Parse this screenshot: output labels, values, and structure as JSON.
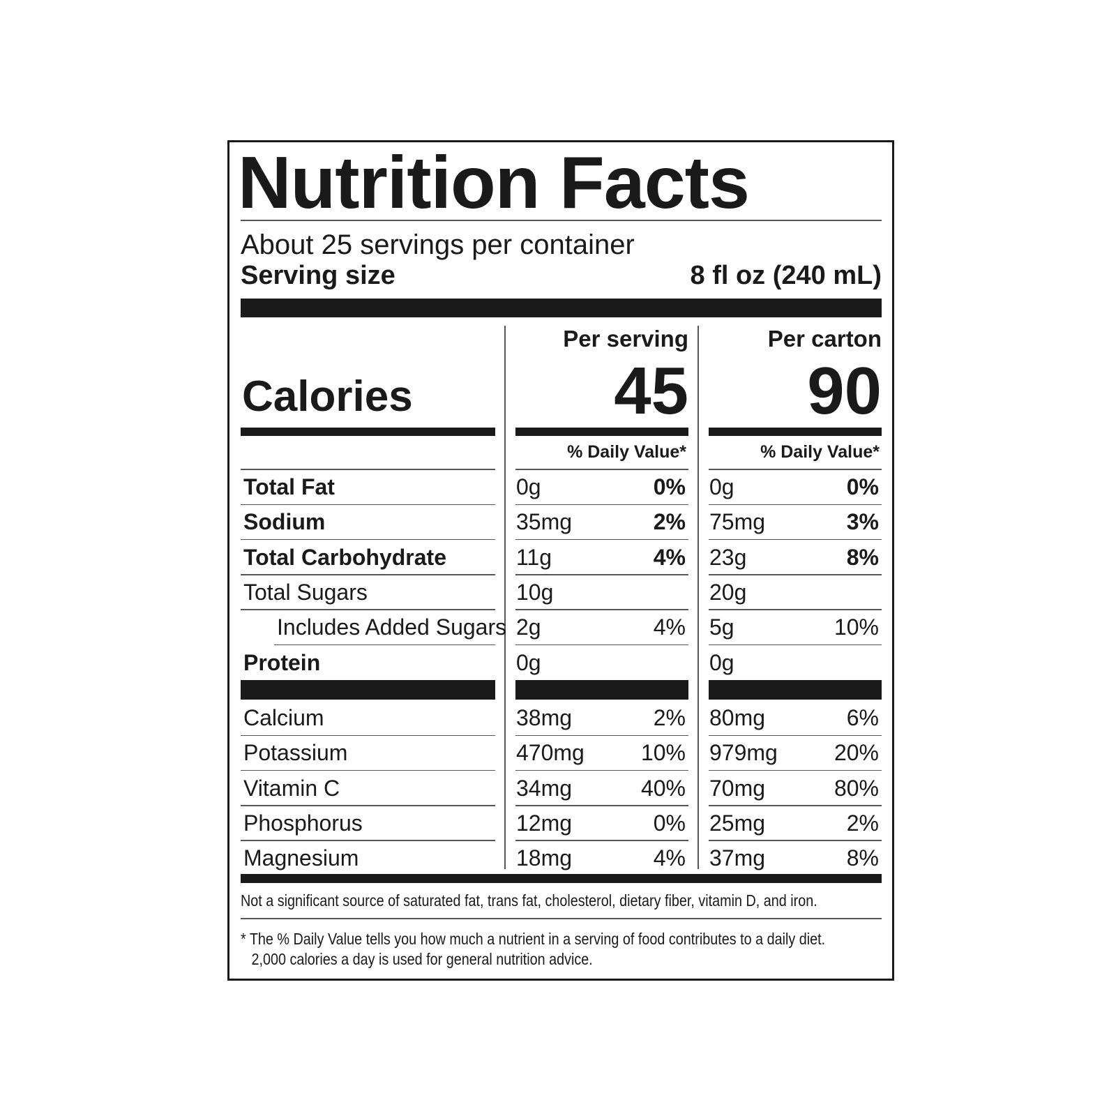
{
  "header": {
    "title": "Nutrition Facts",
    "servings": "About 25 servings per container",
    "serving_size_label": "Serving size",
    "serving_size": "8 fl oz (240 mL)"
  },
  "calories_label": "Calories",
  "columns": [
    {
      "heading": "Per serving",
      "calories": 45,
      "daily_value_heading": "% Daily Value*"
    },
    {
      "heading": "Per carton",
      "calories": 90,
      "daily_value_heading": "% Daily Value*"
    }
  ],
  "nutrients": [
    {
      "name": "Total Fat",
      "bold": true,
      "amounts": [
        "0g",
        "0g"
      ],
      "daily_values": [
        "0%",
        "0%"
      ]
    },
    {
      "name": "Sodium",
      "bold": true,
      "amounts": [
        "35mg",
        "75mg"
      ],
      "daily_values": [
        "2%",
        "3%"
      ]
    },
    {
      "name": "Total Carbohydrate",
      "bold": true,
      "amounts": [
        "11g",
        "23g"
      ],
      "daily_values": [
        "4%",
        "8%"
      ]
    },
    {
      "name": "Total Sugars",
      "bold": false,
      "amounts": [
        "10g",
        "20g"
      ],
      "daily_values": [
        null,
        null
      ]
    },
    {
      "name": "Includes Added Sugars",
      "bold": false,
      "indent": true,
      "amounts": [
        "2g",
        "5g"
      ],
      "daily_values": [
        "4%",
        "10%"
      ]
    },
    {
      "name": "Protein",
      "bold": true,
      "amounts": [
        "0g",
        "0g"
      ],
      "daily_values": [
        null,
        null
      ]
    }
  ],
  "minerals": [
    {
      "name": "Calcium",
      "amounts": [
        "38mg",
        "80mg"
      ],
      "daily_values": [
        "2%",
        "6%"
      ]
    },
    {
      "name": "Potassium",
      "amounts": [
        "470mg",
        "979mg"
      ],
      "daily_values": [
        "10%",
        "20%"
      ]
    },
    {
      "name": "Vitamin C",
      "amounts": [
        "34mg",
        "70mg"
      ],
      "daily_values": [
        "40%",
        "80%"
      ]
    },
    {
      "name": "Phosphorus",
      "amounts": [
        "12mg",
        "25mg"
      ],
      "daily_values": [
        "0%",
        "2%"
      ]
    },
    {
      "name": "Magnesium",
      "amounts": [
        "18mg",
        "37mg"
      ],
      "daily_values": [
        "4%",
        "8%"
      ]
    }
  ],
  "footnotes": [
    "Not a significant source of saturated fat, trans fat, cholesterol, dietary fiber, vitamin D, and iron.",
    "* The % Daily Value tells you how much a nutrient in a serving of food contributes to a daily diet. 2,000 calories a day is used for general nutrition advice."
  ]
}
